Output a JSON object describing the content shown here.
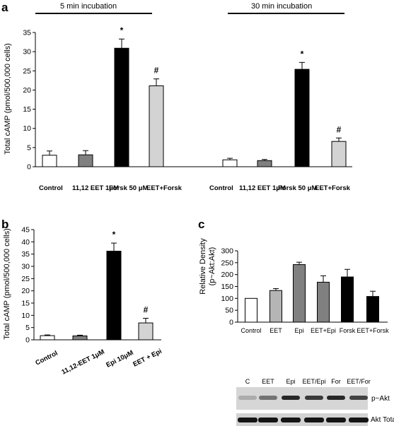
{
  "colors": {
    "Control": "#ffffff",
    "EET": "#808080",
    "Forsk": "#000000",
    "EET+Forsk": "#d3d3d3",
    "Epi": "#000000",
    "EET + Epi": "#d3d3d3",
    "c_white": "#ffffff",
    "c_light": "#b5b5b5",
    "c_mid": "#808080",
    "c_black": "#000000"
  },
  "chart_data": [
    {
      "panel": "a",
      "type": "bar",
      "ylabel": "Total cAMP (pmol/500,000 cells)",
      "ylim": [
        0,
        35
      ],
      "yticks": [
        0,
        5,
        10,
        15,
        20,
        25,
        30,
        35
      ],
      "groups": [
        {
          "label": "5 min incubation",
          "categories": [
            "Control",
            "11,12 EET 1μM",
            "Forsk 50 μM",
            "EET+Forsk"
          ],
          "values": [
            3.0,
            3.1,
            30.9,
            21.1
          ],
          "errors": [
            1.1,
            1.1,
            2.4,
            1.8
          ],
          "markers": [
            "",
            "",
            "*",
            "#"
          ]
        },
        {
          "label": "30 min incubation",
          "categories": [
            "Control",
            "11,12 EET 1μM",
            "Forsk 50 μM",
            "EET+Forsk"
          ],
          "values": [
            1.8,
            1.6,
            25.4,
            6.6
          ],
          "errors": [
            0.4,
            0.3,
            1.8,
            0.9
          ],
          "markers": [
            "",
            "",
            "*",
            "#"
          ]
        }
      ]
    },
    {
      "panel": "b",
      "type": "bar",
      "ylabel": "Total cAMP (pmol/500,000 cells)",
      "ylim": [
        0,
        45
      ],
      "yticks": [
        0,
        5,
        10,
        15,
        20,
        25,
        30,
        35,
        40,
        45
      ],
      "categories": [
        "Control",
        "11,12-EET 1μM",
        "Epi 10μM",
        "EET + Epi"
      ],
      "values": [
        1.7,
        1.6,
        36.2,
        6.9
      ],
      "errors": [
        0.3,
        0.3,
        3.3,
        1.9
      ],
      "markers": [
        "",
        "",
        "*",
        "#"
      ]
    },
    {
      "panel": "c",
      "type": "bar",
      "ylabel": "Relative Density (p~Akt:Akt)",
      "ylim": [
        0,
        300
      ],
      "yticks": [
        0,
        50,
        100,
        150,
        200,
        250,
        300
      ],
      "categories": [
        "Control",
        "EET",
        "Epi",
        "EET+Epi",
        "Forsk",
        "EET+Forsk"
      ],
      "values": [
        100,
        133,
        242,
        168,
        190,
        108
      ],
      "errors": [
        0,
        8,
        10,
        27,
        32,
        22
      ]
    }
  ],
  "blot": {
    "lanes": [
      "C",
      "EET",
      "Epi",
      "EET/Epi",
      "For",
      "EET/For"
    ],
    "rows": [
      "p~Akt",
      "Akt Total"
    ],
    "p_akt_intensity": [
      0.15,
      0.45,
      0.85,
      0.75,
      0.85,
      0.7
    ]
  },
  "labels": {
    "a": "a",
    "b": "b",
    "c": "c",
    "ylabel_a": "Total cAMP (pmol/500,000 cells)",
    "ylabel_b": "Total cAMP (pmol/500,000 cells)",
    "ylabel_c1": "Relative Density",
    "ylabel_c2": "(p~Akt:Akt)",
    "inc5": "5 min incubation",
    "inc30": "30 min incubation",
    "a_cats": [
      "Control",
      "11,12 EET 1μM",
      "Forsk 50 μM",
      "EET+Forsk",
      "Control",
      "11,12 EET 1μM",
      "Forsk 50 μM",
      "EET+Forsk"
    ],
    "b_cats": [
      "Control",
      "11,12-EET 1μM",
      "Epi 10μM",
      "EET + Epi"
    ],
    "c_cats": [
      "Control",
      "EET",
      "Epi",
      "EET+Epi",
      "Forsk",
      "EET+Forsk"
    ]
  }
}
